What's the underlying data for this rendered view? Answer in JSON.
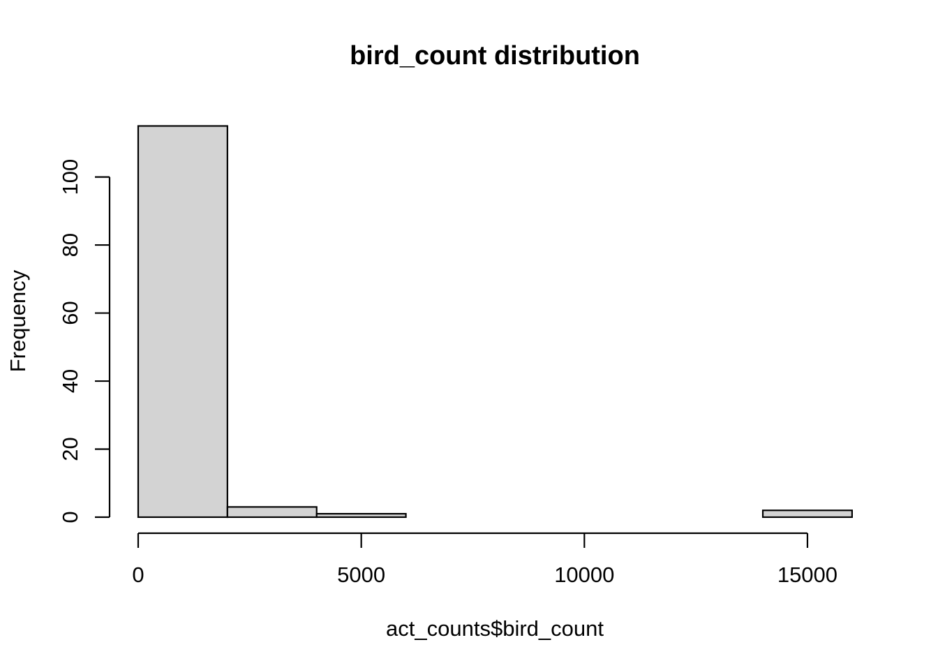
{
  "chart_data": {
    "type": "bar",
    "subtype": "histogram",
    "title": "bird_count distribution",
    "xlabel": "act_counts$bird_count",
    "ylabel": "Frequency",
    "bins": [
      {
        "from": 0,
        "to": 2000,
        "count": 115
      },
      {
        "from": 2000,
        "to": 4000,
        "count": 3
      },
      {
        "from": 4000,
        "to": 6000,
        "count": 1
      },
      {
        "from": 6000,
        "to": 8000,
        "count": 0
      },
      {
        "from": 8000,
        "to": 10000,
        "count": 0
      },
      {
        "from": 10000,
        "to": 12000,
        "count": 0
      },
      {
        "from": 12000,
        "to": 14000,
        "count": 0
      },
      {
        "from": 14000,
        "to": 16000,
        "count": 2
      }
    ],
    "xlim": [
      0,
      16000
    ],
    "ylim": [
      0,
      115
    ],
    "x_ticks": [
      0,
      5000,
      10000,
      15000
    ],
    "x_tick_labels": [
      "0",
      "5000",
      "10000",
      "15000"
    ],
    "y_ticks": [
      0,
      20,
      40,
      60,
      80,
      100
    ],
    "y_tick_labels": [
      "0",
      "20",
      "40",
      "60",
      "80",
      "100"
    ],
    "grid": false,
    "bar_fill": "#d3d3d3",
    "bar_stroke": "#000000"
  }
}
